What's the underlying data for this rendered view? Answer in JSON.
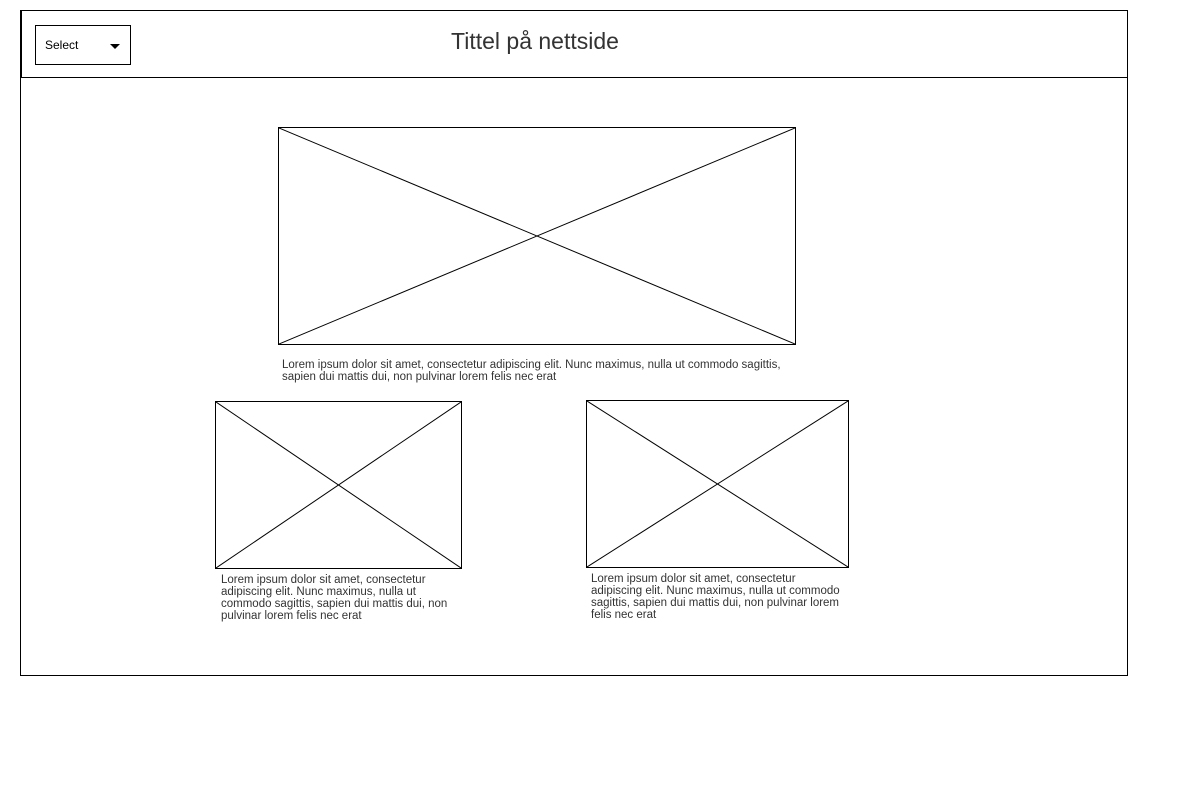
{
  "header": {
    "title": "Tittel på nettside",
    "select": {
      "label": "Select",
      "icon": "caret-down-icon"
    }
  },
  "main": {
    "featured": {
      "image_icon": "image-placeholder-icon",
      "caption": "Lorem ipsum dolor sit amet, consectetur adipiscing elit. Nunc maximus, nulla ut commodo sagittis, sapien dui mattis dui, non pulvinar lorem felis nec erat"
    },
    "cards": [
      {
        "image_icon": "image-placeholder-icon",
        "caption": "Lorem ipsum dolor sit amet, consectetur adipiscing elit. Nunc maximus, nulla ut commodo sagittis, sapien dui mattis dui, non pulvinar lorem felis nec erat"
      },
      {
        "image_icon": "image-placeholder-icon",
        "caption": "Lorem ipsum dolor sit amet, consectetur adipiscing elit. Nunc maximus, nulla ut commodo sagittis, sapien dui mattis dui, non pulvinar lorem felis nec erat"
      }
    ]
  }
}
